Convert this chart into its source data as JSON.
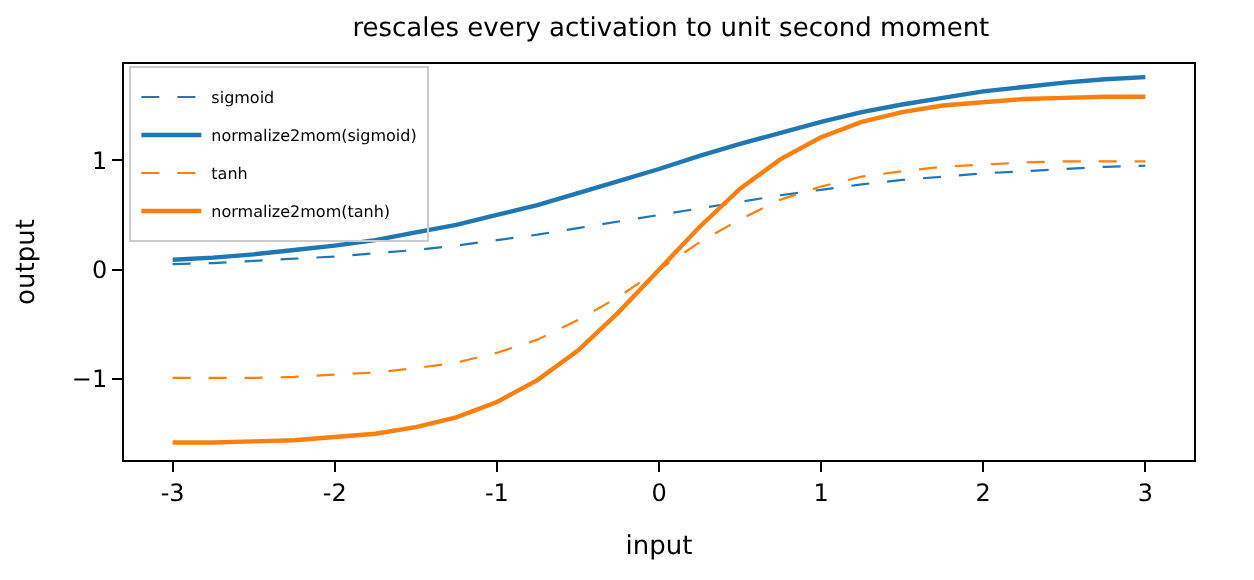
{
  "chart_data": {
    "type": "line",
    "title": "rescales every activation to unit second moment",
    "xlabel": "input",
    "ylabel": "output",
    "x": [
      -3,
      -2.75,
      -2.5,
      -2.25,
      -2,
      -1.75,
      -1.5,
      -1.25,
      -1,
      -0.75,
      -0.5,
      -0.25,
      0,
      0.25,
      0.5,
      0.75,
      1,
      1.25,
      1.5,
      1.75,
      2,
      2.25,
      2.5,
      2.75,
      3
    ],
    "series": [
      {
        "name": "sigmoid",
        "color": "#1f77b4",
        "line_style": "dashed",
        "values": [
          0.05,
          0.06,
          0.08,
          0.1,
          0.12,
          0.15,
          0.18,
          0.22,
          0.27,
          0.32,
          0.38,
          0.44,
          0.5,
          0.56,
          0.62,
          0.68,
          0.73,
          0.78,
          0.82,
          0.85,
          0.88,
          0.9,
          0.92,
          0.94,
          0.95
        ]
      },
      {
        "name": "normalize2mom(sigmoid)",
        "color": "#1f77b4",
        "line_style": "solid",
        "values": [
          0.09,
          0.11,
          0.14,
          0.18,
          0.22,
          0.27,
          0.34,
          0.41,
          0.5,
          0.59,
          0.7,
          0.81,
          0.92,
          1.04,
          1.15,
          1.25,
          1.35,
          1.44,
          1.51,
          1.57,
          1.63,
          1.67,
          1.71,
          1.74,
          1.76
        ]
      },
      {
        "name": "tanh",
        "color": "#ff7f0e",
        "line_style": "dashed",
        "values": [
          -0.99,
          -0.99,
          -0.99,
          -0.98,
          -0.96,
          -0.94,
          -0.9,
          -0.85,
          -0.76,
          -0.64,
          -0.46,
          -0.25,
          0,
          0.25,
          0.46,
          0.64,
          0.76,
          0.85,
          0.9,
          0.94,
          0.96,
          0.98,
          0.99,
          0.99,
          0.99
        ]
      },
      {
        "name": "normalize2mom(tanh)",
        "color": "#ff7f0e",
        "line_style": "solid",
        "values": [
          -1.58,
          -1.58,
          -1.57,
          -1.56,
          -1.53,
          -1.5,
          -1.44,
          -1.35,
          -1.21,
          -1.01,
          -0.74,
          -0.39,
          0,
          0.39,
          0.74,
          1.01,
          1.21,
          1.35,
          1.44,
          1.5,
          1.53,
          1.56,
          1.57,
          1.58,
          1.58
        ]
      }
    ],
    "xlim": [
      -3.3,
      3.3
    ],
    "xticks": [
      -3,
      -2,
      -1,
      0,
      1,
      2,
      3
    ],
    "ylim": [
      -1.74,
      1.88
    ],
    "yticks": [
      {
        "value": -1,
        "label": "−1"
      },
      0,
      1
    ],
    "legend": "top left",
    "marker": "none"
  }
}
